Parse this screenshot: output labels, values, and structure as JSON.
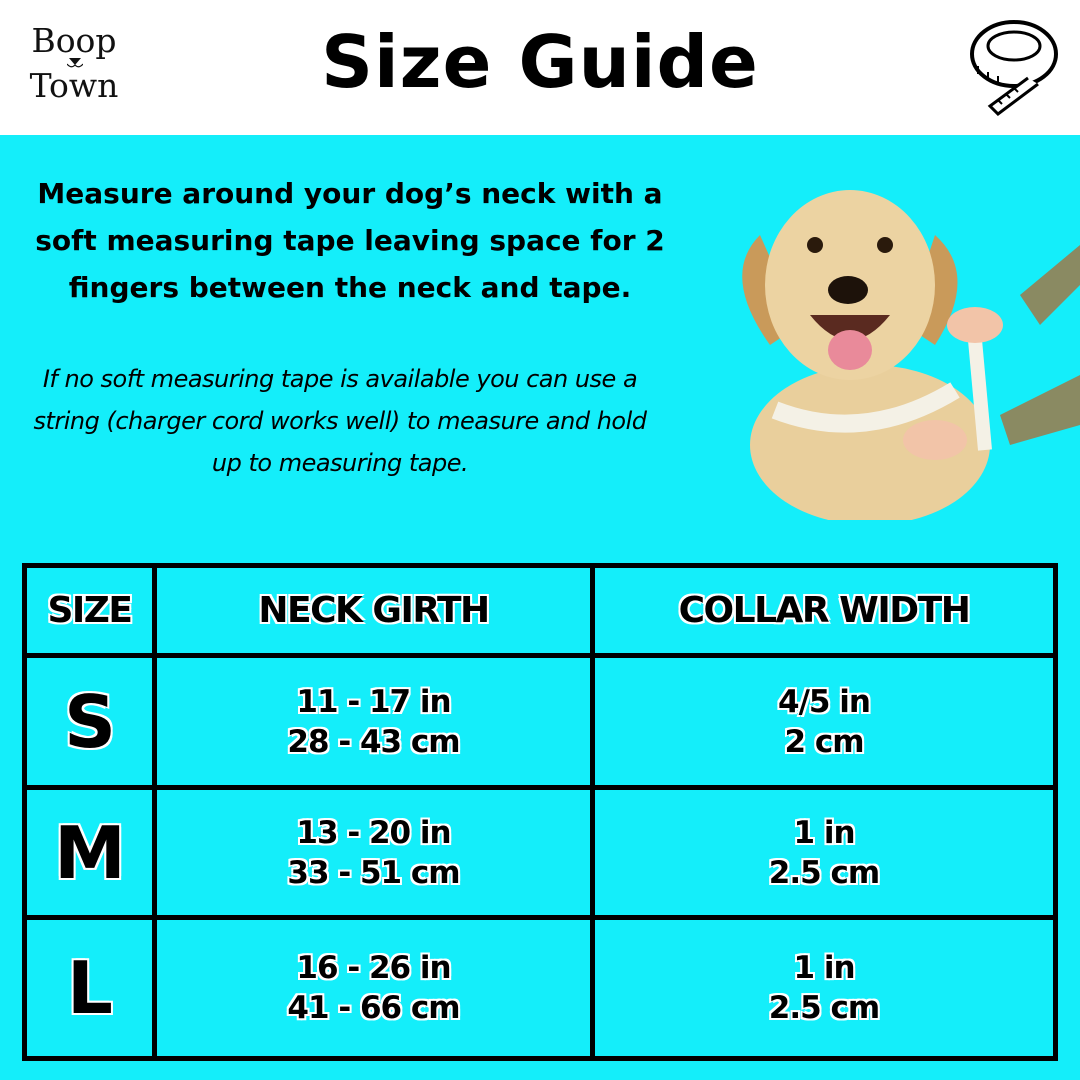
{
  "header": {
    "logo_line1": "Boop",
    "logo_line2": "Town",
    "title": "Size Guide",
    "tape_icon": "measuring-tape-icon"
  },
  "intro": {
    "instruction": "Measure around your dog’s neck with a soft measuring tape leaving space for 2 fingers between the neck and tape.",
    "note": "If no soft measuring tape is available you can use a string (charger cord works well) to measure and hold up to measuring tape."
  },
  "table": {
    "headers": [
      "SIZE",
      "NECK GIRTH",
      "COLLAR WIDTH"
    ],
    "rows": [
      {
        "size": "S",
        "girth_in": "11 - 17 in",
        "girth_cm": "28 - 43 cm",
        "width_in": "4/5 in",
        "width_cm": "2 cm"
      },
      {
        "size": "M",
        "girth_in": "13 - 20 in",
        "girth_cm": "33 - 51 cm",
        "width_in": "1 in",
        "width_cm": "2.5 cm"
      },
      {
        "size": "L",
        "girth_in": "16 - 26 in",
        "girth_cm": "41 - 66 cm",
        "width_in": "1 in",
        "width_cm": "2.5 cm"
      }
    ]
  },
  "colors": {
    "background": "#14eefa",
    "header": "#ffffff",
    "text": "#000000"
  }
}
